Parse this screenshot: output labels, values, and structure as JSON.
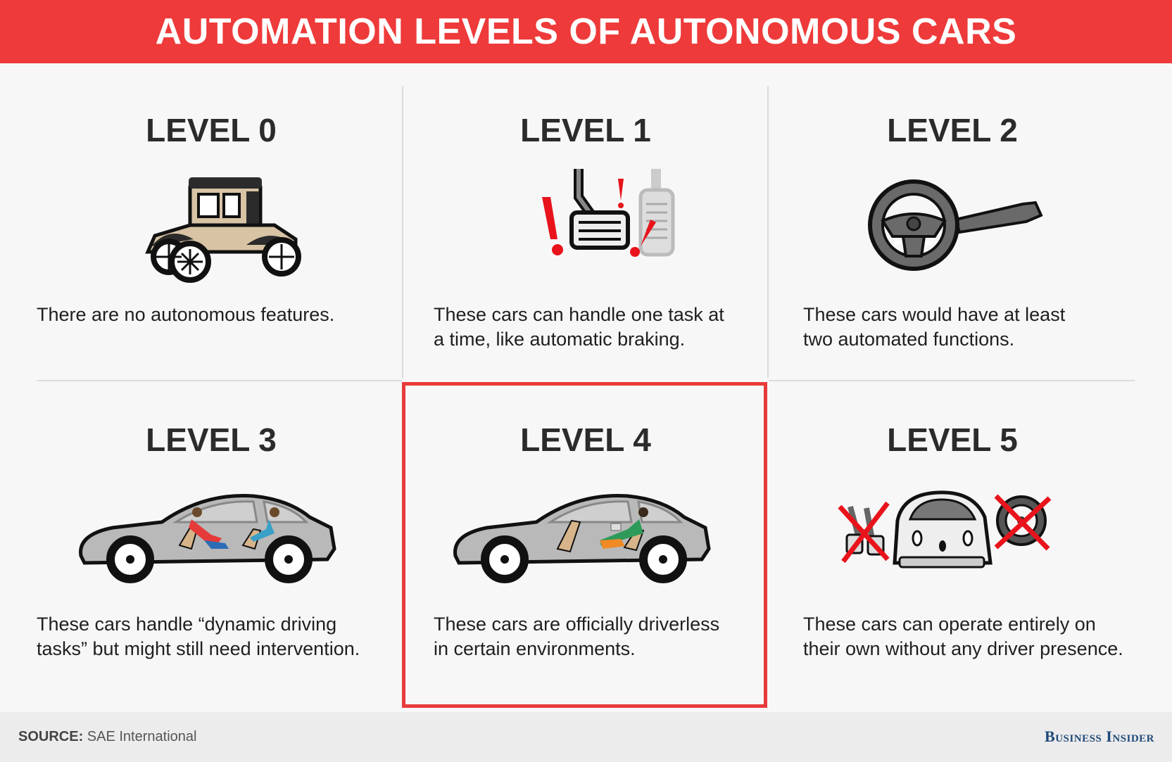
{
  "title": "AUTOMATION LEVELS OF AUTONOMOUS CARS",
  "levels": [
    {
      "name": "LEVEL 0",
      "icon": "vintage-car-icon",
      "line1": "There are no autonomous features.",
      "line2": ""
    },
    {
      "name": "LEVEL 1",
      "icon": "pedals-alert-icon",
      "line1": "These cars can handle one task at",
      "line2": "a time, like automatic braking."
    },
    {
      "name": "LEVEL 2",
      "icon": "steering-wheel-icon",
      "line1": "These cars would have at least",
      "line2": "two automated functions."
    },
    {
      "name": "LEVEL 3",
      "icon": "sedan-passengers-icon",
      "line1": "These cars handle “dynamic driving",
      "line2": "tasks” but might still need intervention."
    },
    {
      "name": "LEVEL 4",
      "icon": "sedan-driverless-icon",
      "line1": "These cars are officially driverless",
      "line2": "in certain environments."
    },
    {
      "name": "LEVEL 5",
      "icon": "pod-car-no-controls-icon",
      "line1": "These cars can operate entirely on",
      "line2": "their own without any driver presence."
    }
  ],
  "highlighted_level": "LEVEL 4",
  "footer": {
    "source_label": "SOURCE:",
    "source_value": "SAE International",
    "brand": "Business Insider"
  },
  "colors": {
    "accent": "#ee3a3a",
    "brand": "#1e4a7a",
    "background": "#f7f7f7"
  }
}
